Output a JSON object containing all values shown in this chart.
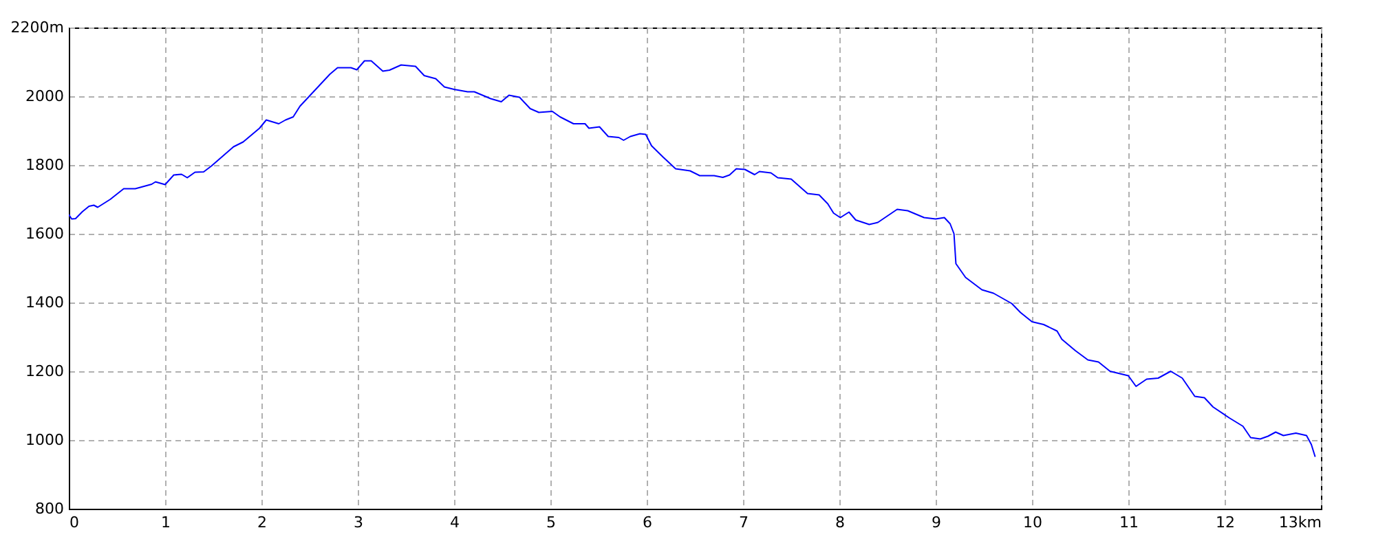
{
  "chart_data": {
    "type": "line",
    "xlim": [
      0,
      13
    ],
    "ylim": [
      800,
      2200
    ],
    "xticks": [
      0,
      1,
      2,
      3,
      4,
      5,
      6,
      7,
      8,
      9,
      10,
      11,
      12,
      {
        "value": 13,
        "label": "13km"
      }
    ],
    "yticks": [
      800,
      1000,
      1200,
      1400,
      1600,
      1800,
      2000,
      {
        "value": 2200,
        "label": "2200m"
      }
    ],
    "grid": true,
    "line_style": "solid",
    "marker": "none",
    "series": [
      {
        "color": "#0000ff",
        "x": [
          0,
          0.03,
          0.07,
          0.14,
          0.21,
          0.26,
          0.3,
          0.43,
          0.57,
          0.69,
          0.86,
          0.9,
          1.0,
          1.09,
          1.17,
          1.23,
          1.31,
          1.4,
          1.48,
          1.71,
          1.81,
          1.98,
          2.05,
          2.18,
          2.25,
          2.33,
          2.4,
          2.52,
          2.71,
          2.79,
          2.93,
          2.99,
          3.07,
          3.14,
          3.26,
          3.33,
          3.45,
          3.6,
          3.69,
          3.81,
          3.9,
          4.0,
          4.14,
          4.21,
          4.38,
          4.49,
          4.57,
          4.68,
          4.79,
          4.88,
          5.02,
          5.1,
          5.24,
          5.36,
          5.4,
          5.51,
          5.6,
          5.71,
          5.76,
          5.83,
          5.93,
          5.99,
          6.05,
          6.17,
          6.3,
          6.45,
          6.55,
          6.7,
          6.79,
          6.86,
          6.93,
          7.02,
          7.12,
          7.17,
          7.29,
          7.36,
          7.5,
          7.67,
          7.79,
          7.88,
          7.94,
          8.01,
          8.1,
          8.17,
          8.31,
          8.4,
          8.6,
          8.71,
          8.88,
          9.0,
          9.09,
          9.15,
          9.19,
          9.21,
          9.31,
          9.48,
          9.6,
          9.79,
          9.88,
          10.0,
          10.12,
          10.26,
          10.31,
          10.45,
          10.58,
          10.69,
          10.81,
          11.0,
          11.08,
          11.19,
          11.31,
          11.44,
          11.56,
          11.69,
          11.79,
          11.88,
          12.05,
          12.19,
          12.27,
          12.37,
          12.45,
          12.53,
          12.61,
          12.74,
          12.85,
          12.9,
          12.94
        ],
        "values": [
          1656,
          1643,
          1644,
          1664,
          1680,
          1683,
          1677,
          1700,
          1731,
          1731,
          1744,
          1751,
          1743,
          1771,
          1773,
          1763,
          1779,
          1780,
          1797,
          1853,
          1867,
          1907,
          1931,
          1920,
          1931,
          1940,
          1971,
          2007,
          2064,
          2083,
          2083,
          2077,
          2103,
          2103,
          2073,
          2076,
          2091,
          2087,
          2060,
          2051,
          2027,
          2020,
          2013,
          2013,
          1993,
          1984,
          2003,
          1997,
          1964,
          1953,
          1956,
          1940,
          1920,
          1920,
          1907,
          1911,
          1883,
          1880,
          1872,
          1883,
          1891,
          1889,
          1856,
          1823,
          1789,
          1783,
          1769,
          1769,
          1764,
          1771,
          1789,
          1787,
          1772,
          1781,
          1777,
          1763,
          1759,
          1717,
          1713,
          1687,
          1660,
          1647,
          1663,
          1640,
          1627,
          1633,
          1671,
          1667,
          1647,
          1643,
          1647,
          1629,
          1600,
          1513,
          1473,
          1437,
          1427,
          1397,
          1371,
          1344,
          1336,
          1317,
          1293,
          1260,
          1233,
          1227,
          1200,
          1187,
          1156,
          1177,
          1180,
          1200,
          1180,
          1127,
          1123,
          1096,
          1064,
          1040,
          1007,
          1003,
          1011,
          1023,
          1013,
          1020,
          1013,
          987,
          951
        ]
      }
    ]
  }
}
